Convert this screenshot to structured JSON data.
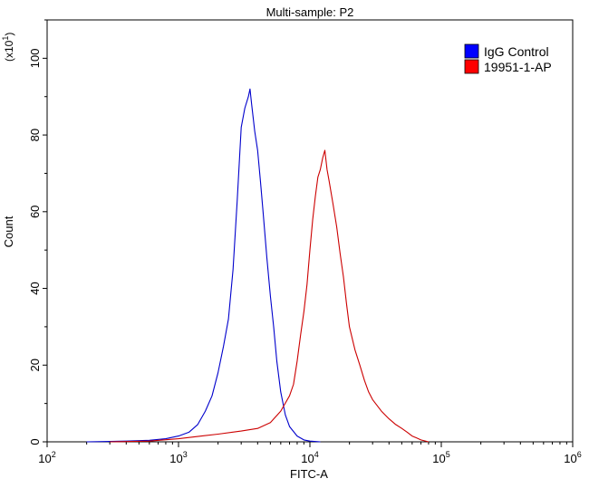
{
  "chart_data": {
    "type": "line",
    "title": "Multi-sample: P2",
    "xlabel": "FITC-A",
    "ylabel": "Count",
    "y_multiplier": {
      "base": "(x10",
      "exp": "1",
      "close": ")"
    },
    "x_scale": "log",
    "xlim": [
      100,
      1000000
    ],
    "ylim": [
      0,
      110
    ],
    "x_ticks": [
      {
        "value": 100,
        "base": "10",
        "exp": "2"
      },
      {
        "value": 1000,
        "base": "10",
        "exp": "3"
      },
      {
        "value": 10000,
        "base": "10",
        "exp": "4"
      },
      {
        "value": 100000,
        "base": "10",
        "exp": "5"
      },
      {
        "value": 1000000,
        "base": "10",
        "exp": "6"
      }
    ],
    "y_ticks": [
      "0",
      "20",
      "40",
      "60",
      "80",
      "100"
    ],
    "grid": false,
    "legend_position": "top-right",
    "series": [
      {
        "name": "IgG Control",
        "color": "#0000cc",
        "legend_color": "#0000ff",
        "points": [
          [
            200,
            0
          ],
          [
            400,
            0.2
          ],
          [
            600,
            0.4
          ],
          [
            800,
            0.8
          ],
          [
            1000,
            1.5
          ],
          [
            1200,
            2.5
          ],
          [
            1400,
            4.5
          ],
          [
            1600,
            8
          ],
          [
            1800,
            12
          ],
          [
            2000,
            18
          ],
          [
            2200,
            25
          ],
          [
            2400,
            32
          ],
          [
            2600,
            45
          ],
          [
            2800,
            63
          ],
          [
            3000,
            82
          ],
          [
            3200,
            87
          ],
          [
            3400,
            90
          ],
          [
            3500,
            92
          ],
          [
            3600,
            88
          ],
          [
            3800,
            81
          ],
          [
            4000,
            76
          ],
          [
            4200,
            68
          ],
          [
            4400,
            60
          ],
          [
            4700,
            48
          ],
          [
            5000,
            38
          ],
          [
            5300,
            30
          ],
          [
            5600,
            21
          ],
          [
            6000,
            13
          ],
          [
            6500,
            7
          ],
          [
            7000,
            4
          ],
          [
            8000,
            1.5
          ],
          [
            9000,
            0.5
          ],
          [
            10000,
            0.2
          ],
          [
            12000,
            0
          ]
        ]
      },
      {
        "name": "19951-1-AP",
        "color": "#cc0000",
        "legend_color": "#ff0000",
        "points": [
          [
            300,
            0
          ],
          [
            600,
            0.2
          ],
          [
            1000,
            0.8
          ],
          [
            1500,
            1.5
          ],
          [
            2000,
            2
          ],
          [
            3000,
            2.8
          ],
          [
            4000,
            3.5
          ],
          [
            5000,
            5
          ],
          [
            6000,
            8
          ],
          [
            7000,
            12
          ],
          [
            7500,
            15
          ],
          [
            8000,
            21
          ],
          [
            8500,
            28
          ],
          [
            9000,
            34
          ],
          [
            9500,
            41
          ],
          [
            10000,
            50
          ],
          [
            10500,
            58
          ],
          [
            11000,
            64
          ],
          [
            11500,
            69
          ],
          [
            12000,
            71
          ],
          [
            12500,
            74
          ],
          [
            13000,
            76
          ],
          [
            13500,
            71
          ],
          [
            14000,
            68
          ],
          [
            15000,
            62
          ],
          [
            16000,
            56
          ],
          [
            17000,
            49
          ],
          [
            18000,
            43
          ],
          [
            19000,
            36
          ],
          [
            20000,
            30
          ],
          [
            22000,
            24
          ],
          [
            24000,
            20
          ],
          [
            26000,
            16
          ],
          [
            28000,
            13
          ],
          [
            30000,
            11
          ],
          [
            35000,
            8
          ],
          [
            40000,
            6
          ],
          [
            45000,
            4.5
          ],
          [
            50000,
            3.5
          ],
          [
            55000,
            2.5
          ],
          [
            60000,
            1.5
          ],
          [
            65000,
            1
          ],
          [
            70000,
            0.5
          ],
          [
            80000,
            0
          ]
        ]
      }
    ]
  }
}
